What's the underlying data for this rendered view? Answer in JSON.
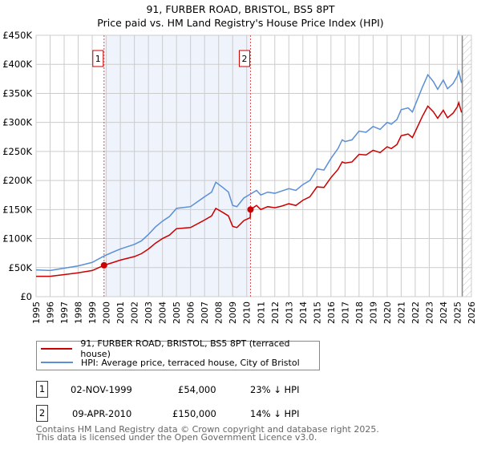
{
  "title": "91, FURBER ROAD, BRISTOL, BS5 8PT",
  "subtitle": "Price paid vs. HM Land Registry's House Price Index (HPI)",
  "chart_data": {
    "type": "line",
    "xlim": [
      1995,
      2026
    ],
    "ylim": [
      0,
      450000
    ],
    "x_ticks": [
      1995,
      1996,
      1997,
      1998,
      1999,
      2000,
      2001,
      2002,
      2003,
      2004,
      2005,
      2006,
      2007,
      2008,
      2009,
      2010,
      2011,
      2012,
      2013,
      2014,
      2015,
      2016,
      2017,
      2018,
      2019,
      2020,
      2021,
      2022,
      2023,
      2024,
      2025,
      2026
    ],
    "y_ticks": [
      {
        "v": 0,
        "l": "£0"
      },
      {
        "v": 50000,
        "l": "£50K"
      },
      {
        "v": 100000,
        "l": "£100K"
      },
      {
        "v": 150000,
        "l": "£150K"
      },
      {
        "v": 200000,
        "l": "£200K"
      },
      {
        "v": 250000,
        "l": "£250K"
      },
      {
        "v": 300000,
        "l": "£300K"
      },
      {
        "v": 350000,
        "l": "£350K"
      },
      {
        "v": 400000,
        "l": "£400K"
      },
      {
        "v": 450000,
        "l": "£450K"
      }
    ],
    "shaded_range": [
      1999.84,
      2010.27
    ],
    "hatched_from": 2025.35,
    "series": [
      {
        "name": "91, FURBER ROAD, BRISTOL, BS5 8PT (terraced house)",
        "color": "#cc0000",
        "x": [
          1995,
          1996,
          1997,
          1998,
          1999,
          1999.84,
          2000.5,
          2001,
          2002,
          2002.5,
          2003,
          2003.5,
          2004,
          2004.5,
          2005,
          2006,
          2007,
          2007.5,
          2007.8,
          2008.3,
          2008.7,
          2009,
          2009.3,
          2009.8,
          2010.25,
          2010.27,
          2010.7,
          2011,
          2011.5,
          2012,
          2012.5,
          2013,
          2013.5,
          2014,
          2014.5,
          2015,
          2015.5,
          2016,
          2016.5,
          2016.8,
          2017,
          2017.5,
          2018,
          2018.5,
          2019,
          2019.5,
          2020,
          2020.3,
          2020.7,
          2021,
          2021.5,
          2021.8,
          2022,
          2022.5,
          2022.9,
          2023.3,
          2023.6,
          2024,
          2024.3,
          2024.7,
          2025,
          2025.1,
          2025.3
        ],
        "y": [
          35,
          35,
          38,
          41,
          45,
          54,
          59,
          63,
          69,
          74,
          82,
          92,
          100,
          106,
          117,
          119,
          132,
          139,
          152,
          145,
          139,
          121,
          119,
          131,
          136,
          150,
          157,
          150,
          155,
          153,
          156,
          160,
          157,
          166,
          172,
          189,
          188,
          205,
          219,
          232,
          230,
          232,
          245,
          244,
          252,
          248,
          258,
          255,
          262,
          277,
          280,
          274,
          284,
          310,
          328,
          318,
          307,
          321,
          308,
          316,
          327,
          334,
          317
        ]
      },
      {
        "name": "HPI: Average price, terraced house, City of Bristol",
        "color": "#5b8fd6",
        "x": [
          1995,
          1996,
          1997,
          1998,
          1999,
          1999.84,
          2000.5,
          2001,
          2002,
          2002.5,
          2003,
          2003.5,
          2004,
          2004.5,
          2005,
          2006,
          2007,
          2007.5,
          2007.8,
          2008.3,
          2008.7,
          2009,
          2009.3,
          2009.8,
          2010.3,
          2010.7,
          2011,
          2011.5,
          2012,
          2012.5,
          2013,
          2013.5,
          2014,
          2014.5,
          2015,
          2015.5,
          2016,
          2016.5,
          2016.8,
          2017,
          2017.5,
          2018,
          2018.5,
          2019,
          2019.5,
          2020,
          2020.3,
          2020.7,
          2021,
          2021.5,
          2021.8,
          2022,
          2022.5,
          2022.9,
          2023.3,
          2023.6,
          2024,
          2024.3,
          2024.7,
          2025,
          2025.1,
          2025.3
        ],
        "y": [
          46,
          45,
          49,
          53,
          59,
          70,
          77,
          82,
          90,
          96,
          107,
          120,
          130,
          138,
          152,
          155,
          172,
          180,
          197,
          188,
          180,
          157,
          155,
          170,
          177,
          183,
          175,
          180,
          178,
          182,
          186,
          183,
          193,
          200,
          220,
          218,
          238,
          255,
          270,
          267,
          270,
          285,
          283,
          293,
          288,
          300,
          297,
          305,
          322,
          325,
          318,
          330,
          360,
          382,
          370,
          357,
          373,
          358,
          367,
          380,
          388,
          368
        ]
      }
    ],
    "y_unit": "thousand GBP",
    "sales": [
      {
        "n": "1",
        "x": 1999.84,
        "y": 54
      },
      {
        "n": "2",
        "x": 2010.27,
        "y": 150
      }
    ]
  },
  "legend": {
    "red": "91, FURBER ROAD, BRISTOL, BS5 8PT (terraced house)",
    "blue": "HPI: Average price, terraced house, City of Bristol"
  },
  "table": [
    {
      "n": "1",
      "date": "02-NOV-1999",
      "price": "£54,000",
      "hpi": "23% ↓ HPI"
    },
    {
      "n": "2",
      "date": "09-APR-2010",
      "price": "£150,000",
      "hpi": "14% ↓ HPI"
    }
  ],
  "footer": {
    "line1": "Contains HM Land Registry data © Crown copyright and database right 2025.",
    "line2": "This data is licensed under the Open Government Licence v3.0."
  }
}
